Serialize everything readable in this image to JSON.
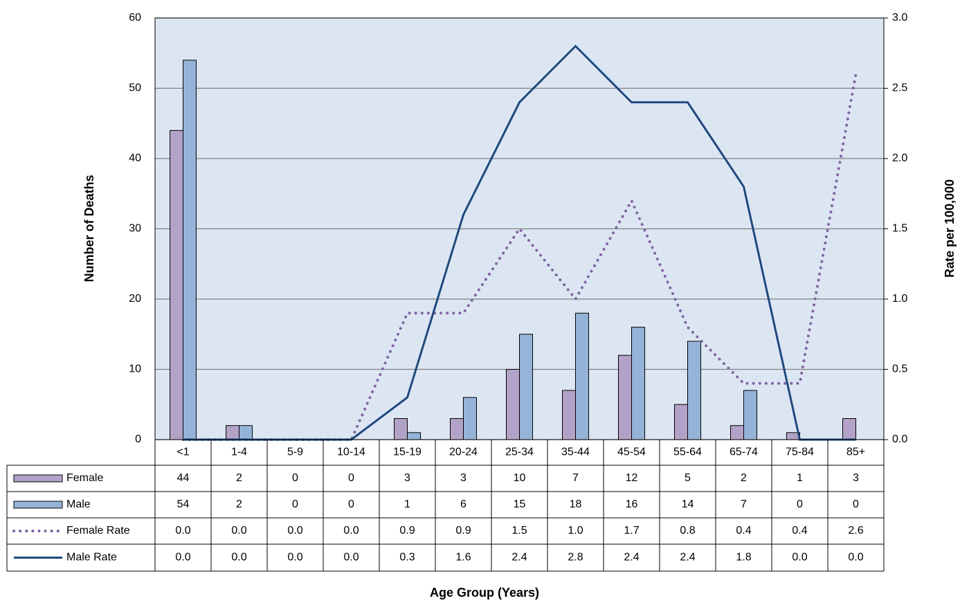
{
  "chart_data": {
    "type": "bar",
    "x_label": "Age Group (Years)",
    "y_label": "Number of Deaths",
    "y2_label": "Rate per 100,000",
    "categories": [
      "<1",
      "1-4",
      "5-9",
      "10-14",
      "15-19",
      "20-24",
      "25-34",
      "35-44",
      "45-54",
      "55-64",
      "65-74",
      "75-84",
      "85+"
    ],
    "series": [
      {
        "name": "Female",
        "type": "bar",
        "color": "#b3a2c7",
        "values": [
          44,
          2,
          0,
          0,
          3,
          3,
          10,
          7,
          12,
          5,
          2,
          1,
          3
        ]
      },
      {
        "name": "Male",
        "type": "bar",
        "color": "#95b3d7",
        "values": [
          54,
          2,
          0,
          0,
          1,
          6,
          15,
          18,
          16,
          14,
          7,
          0,
          0
        ]
      },
      {
        "name": "Female Rate",
        "type": "line",
        "axis": "y2",
        "dash": "dotted",
        "color": "#8064a2",
        "values": [
          0,
          0,
          0,
          0,
          0.9,
          0.9,
          1.5,
          1.0,
          1.7,
          0.8,
          0.4,
          0.4,
          2.6
        ],
        "value_labels": [
          "0.0",
          "0.0",
          "0.0",
          "0.0",
          "0.9",
          "0.9",
          "1.5",
          "1.0",
          "1.7",
          "0.8",
          "0.4",
          "0.4",
          "2.6"
        ]
      },
      {
        "name": "Male Rate",
        "type": "line",
        "axis": "y2",
        "color": "#1f497d",
        "values": [
          0,
          0,
          0,
          0,
          0.3,
          1.6,
          2.4,
          2.8,
          2.4,
          2.4,
          1.8,
          0,
          0
        ],
        "value_labels": [
          "0.0",
          "0.0",
          "0.0",
          "0.0",
          "0.3",
          "1.6",
          "2.4",
          "2.8",
          "2.4",
          "2.4",
          "1.8",
          "0.0",
          "0.0"
        ]
      }
    ],
    "ylim": [
      0,
      60
    ],
    "yticks": [
      0,
      10,
      20,
      30,
      40,
      50,
      60
    ],
    "y2lim": [
      0,
      3
    ],
    "y2ticks": [
      {
        "value": 0,
        "label": "0.0"
      },
      {
        "value": 0.5,
        "label": "0.5"
      },
      {
        "value": 1,
        "label": "1.0"
      },
      {
        "value": 1.5,
        "label": "1.5"
      },
      {
        "value": 2,
        "label": "2.0"
      },
      {
        "value": 2.5,
        "label": "2.5"
      },
      {
        "value": 3,
        "label": "3.0"
      }
    ],
    "grid": true,
    "data_table": true
  }
}
